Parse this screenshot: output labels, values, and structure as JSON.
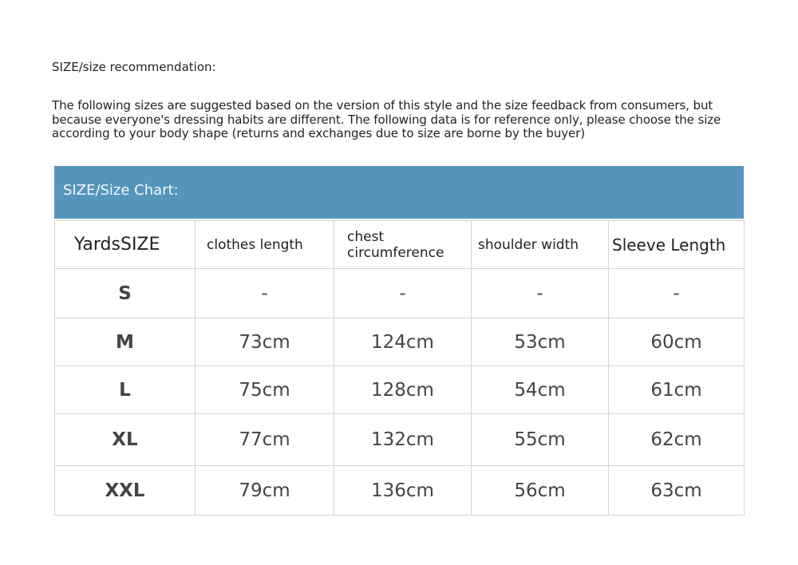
{
  "title": "SIZE/size recommendation:",
  "intro": "The following sizes are suggested based on the version of this style and the size feedback from consumers, but because everyone's dressing habits are different. The following data is for reference only, please choose the size according to your body shape (returns and exchanges due to size are borne by the buyer)",
  "chart": {
    "heading": "SIZE/Size Chart:",
    "header_color": "#5595bb",
    "columns": [
      "YardsSIZE",
      "clothes length",
      "chest circumference",
      "shoulder width",
      "Sleeve Length"
    ],
    "rows": [
      [
        "S",
        "-",
        "-",
        "-",
        "-"
      ],
      [
        "M",
        "73cm",
        "124cm",
        "53cm",
        "60cm"
      ],
      [
        "L",
        "75cm",
        "128cm",
        "54cm",
        "61cm"
      ],
      [
        "XL",
        "77cm",
        "132cm",
        "55cm",
        "62cm"
      ],
      [
        "XXL",
        "79cm",
        "136cm",
        "56cm",
        "63cm"
      ]
    ]
  }
}
